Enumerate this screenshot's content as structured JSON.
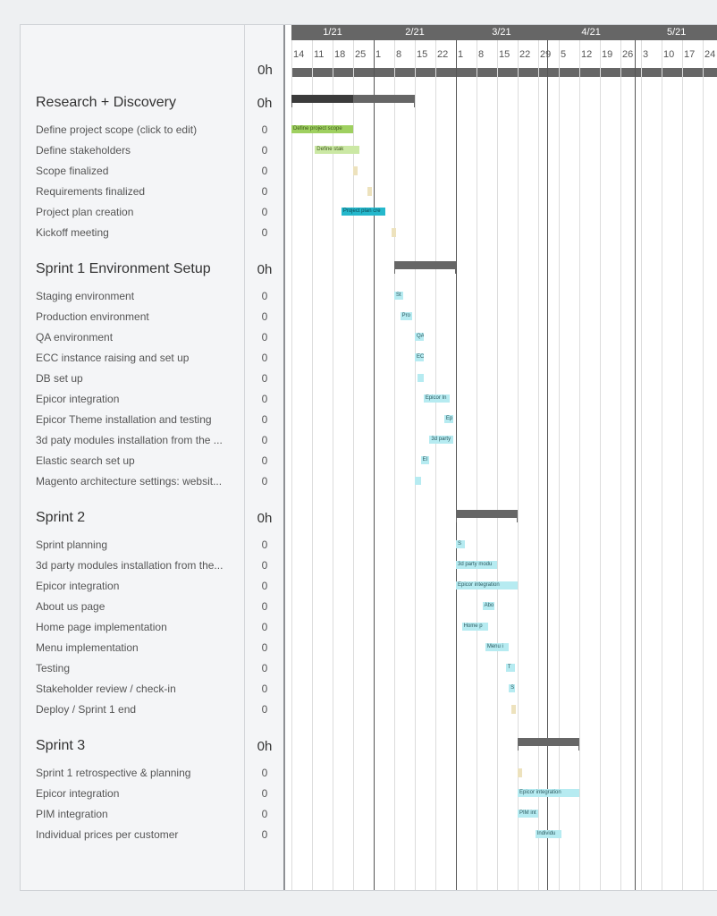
{
  "total_hours": "0h",
  "timeline": {
    "origin": "2021-01-04",
    "months": [
      {
        "label": "1/21",
        "start": "2021-01-01",
        "end": "2021-02-01"
      },
      {
        "label": "2/21",
        "start": "2021-02-01",
        "end": "2021-03-01"
      },
      {
        "label": "3/21",
        "start": "2021-03-01",
        "end": "2021-04-01"
      },
      {
        "label": "4/21",
        "start": "2021-04-01",
        "end": "2021-05-01"
      },
      {
        "label": "5/21",
        "start": "2021-05-01",
        "end": "2021-06-01"
      }
    ],
    "weeks": [
      "14",
      "11",
      "18",
      "25",
      "1",
      "8",
      "15",
      "22",
      "1",
      "8",
      "15",
      "22",
      "29",
      "5",
      "12",
      "19",
      "26",
      "3",
      "10",
      "17",
      "24"
    ]
  },
  "colors": {
    "green": "#9fd060",
    "green_light": "#cbe8a4",
    "teal": "#25b8cc",
    "cyan": "#b6ebf1",
    "milestone": "#ede2bd",
    "group": "#666666",
    "progress": "#3b3b3b"
  },
  "groups": [
    {
      "title": "Research + Discovery",
      "hours": "0h",
      "start": "2021-01-04",
      "end": "2021-02-15",
      "progress": 0.5,
      "tasks": [
        {
          "name": "Define project scope (click to edit)",
          "bar_label": "Define project scope",
          "hours": "0",
          "start": "2021-01-04",
          "end": "2021-01-25",
          "color": "green"
        },
        {
          "name": "Define stakeholders",
          "bar_label": "Define stak",
          "hours": "0",
          "start": "2021-01-12",
          "end": "2021-01-27",
          "color": "green_light"
        },
        {
          "name": "Scope finalized",
          "hours": "0",
          "start": "2021-01-25",
          "milestone": true
        },
        {
          "name": "Requirements finalized",
          "hours": "0",
          "start": "2021-01-30",
          "milestone": true
        },
        {
          "name": "Project plan creation",
          "bar_label": "Project plan cre",
          "hours": "0",
          "start": "2021-01-21",
          "end": "2021-02-05",
          "color": "teal"
        },
        {
          "name": "Kickoff meeting",
          "hours": "0",
          "start": "2021-02-07",
          "milestone": true
        }
      ]
    },
    {
      "title": "Sprint 1 Environment Setup",
      "hours": "0h",
      "start": "2021-02-08",
      "end": "2021-03-01",
      "tasks": [
        {
          "name": "Staging environment",
          "bar_label": "St",
          "hours": "0",
          "start": "2021-02-08",
          "end": "2021-02-11",
          "color": "cyan"
        },
        {
          "name": "Production environment",
          "bar_label": "Pro",
          "hours": "0",
          "start": "2021-02-10",
          "end": "2021-02-14",
          "color": "cyan"
        },
        {
          "name": "QA environment",
          "bar_label": "QA",
          "hours": "0",
          "start": "2021-02-15",
          "end": "2021-02-18",
          "color": "cyan"
        },
        {
          "name": "ECC instance raising and set up",
          "bar_label": "EC",
          "hours": "0",
          "start": "2021-02-15",
          "end": "2021-02-18",
          "color": "cyan"
        },
        {
          "name": "DB set up",
          "bar_label": "",
          "hours": "0",
          "start": "2021-02-16",
          "end": "2021-02-18",
          "color": "cyan"
        },
        {
          "name": "Epicor integration",
          "bar_label": "Epicor In",
          "hours": "0",
          "start": "2021-02-18",
          "end": "2021-02-27",
          "color": "cyan"
        },
        {
          "name": "Epicor Theme installation and testing",
          "bar_label": "Ep",
          "hours": "0",
          "start": "2021-02-25",
          "end": "2021-02-28",
          "color": "cyan"
        },
        {
          "name": "3d paty modules installation from the ...",
          "bar_label": "3d party",
          "hours": "0",
          "start": "2021-02-20",
          "end": "2021-02-28",
          "color": "cyan"
        },
        {
          "name": "Elastic search set up",
          "bar_label": "El",
          "hours": "0",
          "start": "2021-02-17",
          "end": "2021-02-20",
          "color": "cyan"
        },
        {
          "name": "Magento architecture settings: websit...",
          "bar_label": "",
          "hours": "0",
          "start": "2021-02-15",
          "end": "2021-02-17",
          "color": "cyan"
        }
      ]
    },
    {
      "title": "Sprint 2",
      "hours": "0h",
      "start": "2021-03-01",
      "end": "2021-03-22",
      "tasks": [
        {
          "name": "Sprint planning",
          "bar_label": "S",
          "hours": "0",
          "start": "2021-03-01",
          "end": "2021-03-04",
          "color": "cyan"
        },
        {
          "name": "3d party modules installation from the...",
          "bar_label": "3d party modu",
          "hours": "0",
          "start": "2021-03-01",
          "end": "2021-03-15",
          "color": "cyan"
        },
        {
          "name": "Epicor integration",
          "bar_label": "Epicor integration",
          "hours": "0",
          "start": "2021-03-01",
          "end": "2021-03-22",
          "color": "cyan"
        },
        {
          "name": "About us page",
          "bar_label": "Abo",
          "hours": "0",
          "start": "2021-03-10",
          "end": "2021-03-14",
          "color": "cyan"
        },
        {
          "name": "Home page implementation",
          "bar_label": "Home p",
          "hours": "0",
          "start": "2021-03-03",
          "end": "2021-03-12",
          "color": "cyan"
        },
        {
          "name": "Menu implementation",
          "bar_label": "Menu i",
          "hours": "0",
          "start": "2021-03-11",
          "end": "2021-03-19",
          "color": "cyan"
        },
        {
          "name": "Testing",
          "bar_label": "T",
          "hours": "0",
          "start": "2021-03-18",
          "end": "2021-03-21",
          "color": "cyan"
        },
        {
          "name": "Stakeholder review / check-in",
          "bar_label": "S",
          "hours": "0",
          "start": "2021-03-19",
          "end": "2021-03-21",
          "color": "cyan"
        },
        {
          "name": "Deploy / Sprint 1 end",
          "hours": "0",
          "start": "2021-03-20",
          "milestone": true
        }
      ]
    },
    {
      "title": "Sprint 3",
      "hours": "0h",
      "start": "2021-03-22",
      "end": "2021-04-12",
      "tasks": [
        {
          "name": "Sprint 1 retrospective & planning",
          "hours": "0",
          "start": "2021-03-22",
          "milestone": true
        },
        {
          "name": "Epicor integration",
          "bar_label": "Epicor integration",
          "hours": "0",
          "start": "2021-03-22",
          "end": "2021-04-12",
          "color": "cyan"
        },
        {
          "name": "PIM integration",
          "bar_label": "PIM int",
          "hours": "0",
          "start": "2021-03-22",
          "end": "2021-03-29",
          "color": "cyan"
        },
        {
          "name": "Individual prices per customer",
          "bar_label": "Individu",
          "hours": "0",
          "start": "2021-03-28",
          "end": "2021-04-06",
          "color": "cyan"
        }
      ]
    }
  ]
}
